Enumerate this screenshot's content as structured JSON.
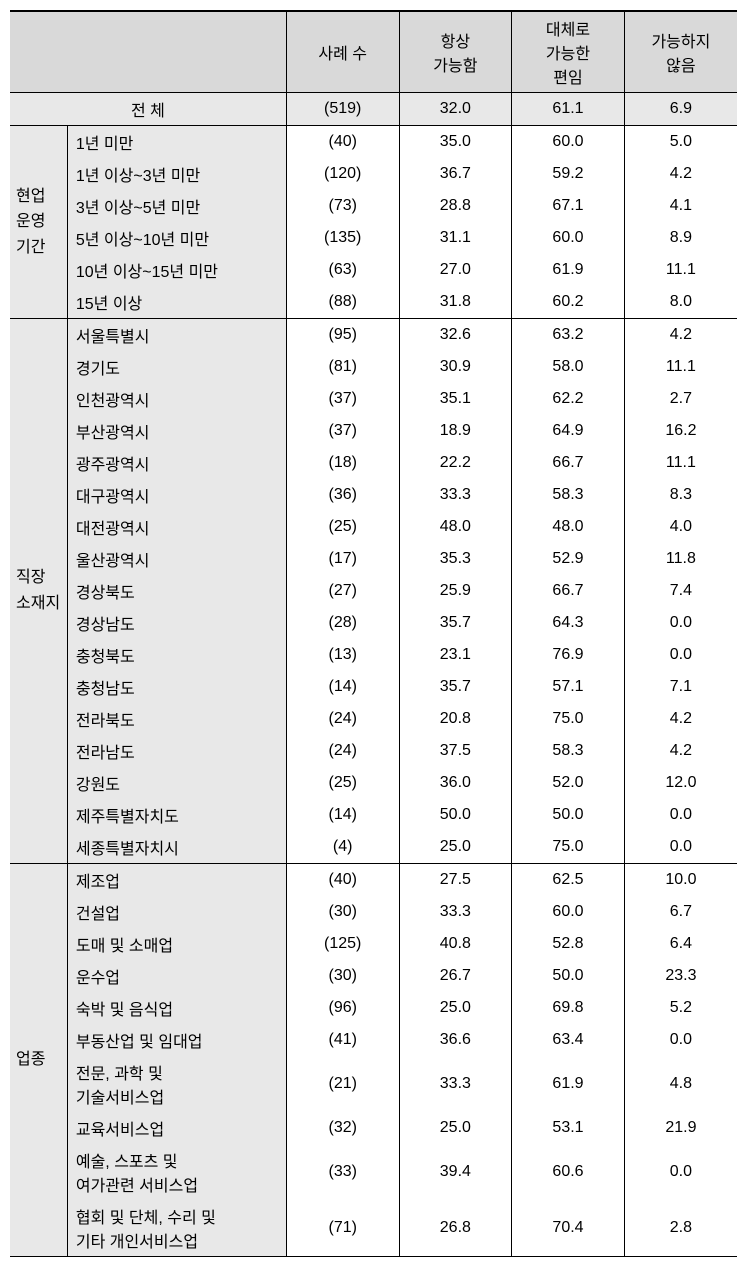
{
  "headers": {
    "col1": "사례 수",
    "col2": "항상\n가능함",
    "col3": "대체로\n가능한\n편임",
    "col4": "가능하지\n않음"
  },
  "total": {
    "label": "전 체",
    "count": "(519)",
    "v1": "32.0",
    "v2": "61.1",
    "v3": "6.9"
  },
  "groups": [
    {
      "label": "현업\n운영\n기간",
      "rows": [
        {
          "label": "1년 미만",
          "count": "(40)",
          "v1": "35.0",
          "v2": "60.0",
          "v3": "5.0"
        },
        {
          "label": "1년 이상~3년 미만",
          "count": "(120)",
          "v1": "36.7",
          "v2": "59.2",
          "v3": "4.2"
        },
        {
          "label": "3년 이상~5년 미만",
          "count": "(73)",
          "v1": "28.8",
          "v2": "67.1",
          "v3": "4.1"
        },
        {
          "label": "5년 이상~10년 미만",
          "count": "(135)",
          "v1": "31.1",
          "v2": "60.0",
          "v3": "8.9"
        },
        {
          "label": "10년 이상~15년 미만",
          "count": "(63)",
          "v1": "27.0",
          "v2": "61.9",
          "v3": "11.1"
        },
        {
          "label": "15년 이상",
          "count": "(88)",
          "v1": "31.8",
          "v2": "60.2",
          "v3": "8.0"
        }
      ]
    },
    {
      "label": "직장\n소재지",
      "rows": [
        {
          "label": "서울특별시",
          "count": "(95)",
          "v1": "32.6",
          "v2": "63.2",
          "v3": "4.2"
        },
        {
          "label": "경기도",
          "count": "(81)",
          "v1": "30.9",
          "v2": "58.0",
          "v3": "11.1"
        },
        {
          "label": "인천광역시",
          "count": "(37)",
          "v1": "35.1",
          "v2": "62.2",
          "v3": "2.7"
        },
        {
          "label": "부산광역시",
          "count": "(37)",
          "v1": "18.9",
          "v2": "64.9",
          "v3": "16.2"
        },
        {
          "label": "광주광역시",
          "count": "(18)",
          "v1": "22.2",
          "v2": "66.7",
          "v3": "11.1"
        },
        {
          "label": "대구광역시",
          "count": "(36)",
          "v1": "33.3",
          "v2": "58.3",
          "v3": "8.3"
        },
        {
          "label": "대전광역시",
          "count": "(25)",
          "v1": "48.0",
          "v2": "48.0",
          "v3": "4.0"
        },
        {
          "label": "울산광역시",
          "count": "(17)",
          "v1": "35.3",
          "v2": "52.9",
          "v3": "11.8"
        },
        {
          "label": "경상북도",
          "count": "(27)",
          "v1": "25.9",
          "v2": "66.7",
          "v3": "7.4"
        },
        {
          "label": "경상남도",
          "count": "(28)",
          "v1": "35.7",
          "v2": "64.3",
          "v3": "0.0"
        },
        {
          "label": "충청북도",
          "count": "(13)",
          "v1": "23.1",
          "v2": "76.9",
          "v3": "0.0"
        },
        {
          "label": "충청남도",
          "count": "(14)",
          "v1": "35.7",
          "v2": "57.1",
          "v3": "7.1"
        },
        {
          "label": "전라북도",
          "count": "(24)",
          "v1": "20.8",
          "v2": "75.0",
          "v3": "4.2"
        },
        {
          "label": "전라남도",
          "count": "(24)",
          "v1": "37.5",
          "v2": "58.3",
          "v3": "4.2"
        },
        {
          "label": "강원도",
          "count": "(25)",
          "v1": "36.0",
          "v2": "52.0",
          "v3": "12.0"
        },
        {
          "label": "제주특별자치도",
          "count": "(14)",
          "v1": "50.0",
          "v2": "50.0",
          "v3": "0.0"
        },
        {
          "label": "세종특별자치시",
          "count": "(4)",
          "v1": "25.0",
          "v2": "75.0",
          "v3": "0.0"
        }
      ]
    },
    {
      "label": "업종",
      "rows": [
        {
          "label": "제조업",
          "count": "(40)",
          "v1": "27.5",
          "v2": "62.5",
          "v3": "10.0"
        },
        {
          "label": "건설업",
          "count": "(30)",
          "v1": "33.3",
          "v2": "60.0",
          "v3": "6.7"
        },
        {
          "label": "도매 및 소매업",
          "count": "(125)",
          "v1": "40.8",
          "v2": "52.8",
          "v3": "6.4"
        },
        {
          "label": "운수업",
          "count": "(30)",
          "v1": "26.7",
          "v2": "50.0",
          "v3": "23.3"
        },
        {
          "label": "숙박 및 음식업",
          "count": "(96)",
          "v1": "25.0",
          "v2": "69.8",
          "v3": "5.2"
        },
        {
          "label": "부동산업 및 임대업",
          "count": "(41)",
          "v1": "36.6",
          "v2": "63.4",
          "v3": "0.0"
        },
        {
          "label": "전문, 과학 및\n기술서비스업",
          "count": "(21)",
          "v1": "33.3",
          "v2": "61.9",
          "v3": "4.8"
        },
        {
          "label": "교육서비스업",
          "count": "(32)",
          "v1": "25.0",
          "v2": "53.1",
          "v3": "21.9"
        },
        {
          "label": "예술, 스포츠 및\n여가관련 서비스업",
          "count": "(33)",
          "v1": "39.4",
          "v2": "60.6",
          "v3": "0.0"
        },
        {
          "label": "협회 및 단체, 수리 및\n기타 개인서비스업",
          "count": "(71)",
          "v1": "26.8",
          "v2": "70.4",
          "v3": "2.8"
        }
      ]
    }
  ]
}
